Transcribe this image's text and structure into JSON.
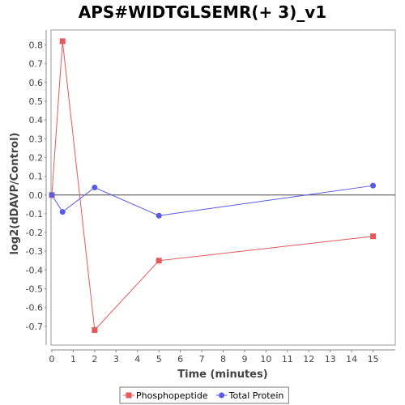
{
  "chart_data": {
    "type": "line",
    "title": "APS#WIDTGLSEMR(+ 3)_v1",
    "xlabel": "Time (minutes)",
    "ylabel": "log2(dDAVP/Control)",
    "xlim": [
      0,
      16
    ],
    "ylim": [
      -0.8,
      0.88
    ],
    "x_ticks": [
      0,
      1,
      2,
      3,
      4,
      5,
      6,
      7,
      8,
      9,
      10,
      11,
      12,
      13,
      14,
      15
    ],
    "y_ticks": [
      0.8,
      0.7,
      0.6,
      0.5,
      0.4,
      0.3,
      0.2,
      0.1,
      0.0,
      -0.1,
      -0.2,
      -0.3,
      -0.4,
      -0.5,
      -0.6,
      -0.7
    ],
    "y_tick_labels": [
      "0.8",
      "0.7",
      "0.6",
      "0.5",
      "0.4",
      "0.3",
      "0.2",
      "0.1",
      "0.0",
      "-0.1",
      "-0.2",
      "-0.3",
      "-0.4",
      "-0.5",
      "-0.6",
      "-0.7"
    ],
    "zero_line": true,
    "grid": false,
    "legend_position": "bottom-center",
    "series": [
      {
        "name": "Phosphopeptide",
        "color": "#e8585a",
        "marker": "square",
        "x": [
          0,
          0.5,
          2,
          5,
          15
        ],
        "y": [
          0.0,
          0.82,
          -0.72,
          -0.35,
          -0.22
        ]
      },
      {
        "name": "Total Protein",
        "color": "#5a5ae8",
        "marker": "circle",
        "x": [
          0,
          0.5,
          2,
          5,
          15
        ],
        "y": [
          0.0,
          -0.09,
          0.04,
          -0.11,
          0.05
        ]
      }
    ]
  }
}
